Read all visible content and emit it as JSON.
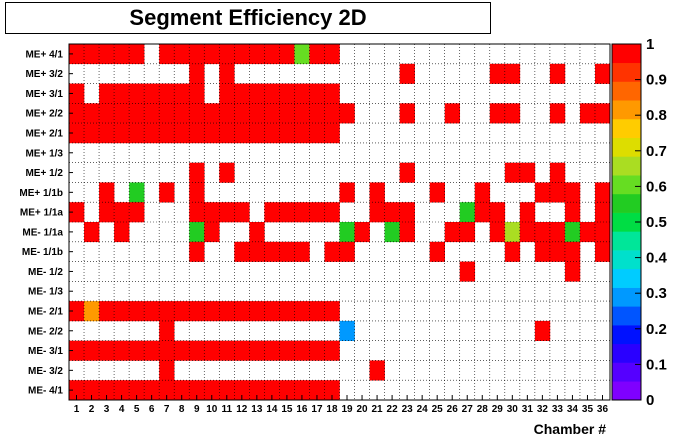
{
  "chart_data": {
    "type": "heatmap",
    "title": "Segment Efficiency 2D",
    "xlabel": "Chamber #",
    "ylabel": "",
    "x": [
      1,
      2,
      3,
      4,
      5,
      6,
      7,
      8,
      9,
      10,
      11,
      12,
      13,
      14,
      15,
      16,
      17,
      18,
      19,
      20,
      21,
      22,
      23,
      24,
      25,
      26,
      27,
      28,
      29,
      30,
      31,
      32,
      33,
      34,
      35,
      36
    ],
    "y": [
      "ME+ 4/1",
      "ME+ 3/2",
      "ME+ 3/1",
      "ME+ 2/2",
      "ME+ 2/1",
      "ME+ 1/3",
      "ME+ 1/2",
      "ME+ 1/1b",
      "ME+ 1/1a",
      "ME- 1/1a",
      "ME- 1/1b",
      "ME- 1/2",
      "ME- 1/3",
      "ME- 2/1",
      "ME- 2/2",
      "ME- 3/1",
      "ME- 3/2",
      "ME- 4/1"
    ],
    "zlim": [
      0,
      1
    ],
    "colorbar_ticks": [
      "0",
      "0.1",
      "0.2",
      "0.3",
      "0.4",
      "0.5",
      "0.6",
      "0.7",
      "0.8",
      "0.9",
      "1"
    ],
    "grid": true,
    "z": [
      [
        1,
        1,
        1,
        1,
        1,
        null,
        1,
        1,
        1,
        1,
        1,
        1,
        1,
        1,
        1,
        0.6,
        1,
        1,
        null,
        null,
        null,
        null,
        null,
        null,
        null,
        null,
        null,
        null,
        null,
        null,
        null,
        null,
        null,
        null,
        null,
        null
      ],
      [
        null,
        null,
        null,
        null,
        null,
        null,
        null,
        null,
        1,
        null,
        1,
        null,
        null,
        null,
        null,
        null,
        null,
        null,
        null,
        null,
        null,
        null,
        1,
        null,
        null,
        null,
        null,
        null,
        1,
        1,
        null,
        null,
        1,
        null,
        null,
        1
      ],
      [
        1,
        null,
        1,
        1,
        1,
        1,
        1,
        1,
        1,
        null,
        1,
        1,
        1,
        1,
        1,
        1,
        1,
        1,
        null,
        null,
        null,
        null,
        null,
        null,
        null,
        null,
        null,
        null,
        null,
        null,
        null,
        null,
        null,
        null,
        null,
        null
      ],
      [
        1,
        1,
        1,
        1,
        1,
        1,
        1,
        1,
        1,
        1,
        1,
        1,
        1,
        1,
        1,
        1,
        1,
        1,
        1,
        null,
        null,
        null,
        1,
        null,
        null,
        1,
        null,
        null,
        1,
        1,
        null,
        null,
        1,
        null,
        1,
        1
      ],
      [
        1,
        1,
        1,
        1,
        1,
        1,
        1,
        1,
        1,
        1,
        1,
        1,
        1,
        1,
        1,
        1,
        1,
        1,
        null,
        null,
        null,
        null,
        null,
        null,
        null,
        null,
        null,
        null,
        null,
        null,
        null,
        null,
        null,
        null,
        null,
        null
      ],
      [
        null,
        null,
        null,
        null,
        null,
        null,
        null,
        null,
        null,
        null,
        null,
        null,
        null,
        null,
        null,
        null,
        null,
        null,
        null,
        null,
        null,
        null,
        null,
        null,
        null,
        null,
        null,
        null,
        null,
        null,
        null,
        null,
        null,
        null,
        null,
        null
      ],
      [
        null,
        null,
        null,
        null,
        null,
        null,
        null,
        null,
        1,
        null,
        1,
        null,
        null,
        null,
        null,
        null,
        null,
        null,
        null,
        null,
        null,
        null,
        1,
        null,
        null,
        null,
        null,
        null,
        null,
        1,
        1,
        null,
        1,
        null,
        null,
        null
      ],
      [
        null,
        null,
        1,
        null,
        0.55,
        null,
        1,
        null,
        1,
        null,
        null,
        null,
        null,
        null,
        null,
        null,
        null,
        null,
        1,
        null,
        1,
        null,
        null,
        null,
        1,
        null,
        null,
        1,
        null,
        null,
        null,
        1,
        1,
        1,
        null,
        1
      ],
      [
        1,
        null,
        1,
        1,
        1,
        null,
        null,
        null,
        1,
        1,
        1,
        1,
        null,
        1,
        1,
        1,
        1,
        1,
        null,
        null,
        1,
        1,
        1,
        null,
        null,
        null,
        0.55,
        1,
        1,
        null,
        1,
        null,
        null,
        1,
        null,
        1
      ],
      [
        null,
        1,
        null,
        1,
        null,
        null,
        null,
        null,
        0.55,
        1,
        null,
        null,
        1,
        null,
        null,
        null,
        null,
        null,
        0.55,
        1,
        null,
        0.55,
        1,
        null,
        null,
        1,
        1,
        null,
        1,
        0.65,
        1,
        1,
        1,
        0.55,
        1,
        1
      ],
      [
        null,
        null,
        null,
        null,
        null,
        null,
        null,
        null,
        1,
        null,
        null,
        1,
        1,
        1,
        1,
        1,
        null,
        1,
        1,
        null,
        null,
        null,
        null,
        null,
        1,
        null,
        null,
        null,
        null,
        1,
        null,
        1,
        1,
        1,
        null,
        1
      ],
      [
        null,
        null,
        null,
        null,
        null,
        null,
        null,
        null,
        null,
        null,
        null,
        null,
        null,
        null,
        null,
        null,
        null,
        null,
        null,
        null,
        null,
        null,
        null,
        null,
        null,
        null,
        1,
        null,
        null,
        null,
        null,
        null,
        null,
        1,
        null,
        null
      ],
      [
        null,
        null,
        null,
        null,
        null,
        null,
        null,
        null,
        null,
        null,
        null,
        null,
        null,
        null,
        null,
        null,
        null,
        null,
        null,
        null,
        null,
        null,
        null,
        null,
        null,
        null,
        null,
        null,
        null,
        null,
        null,
        null,
        null,
        null,
        null,
        null
      ],
      [
        1,
        0.85,
        1,
        1,
        1,
        1,
        1,
        1,
        1,
        1,
        1,
        1,
        1,
        1,
        1,
        1,
        1,
        1,
        null,
        null,
        null,
        null,
        null,
        null,
        null,
        null,
        null,
        null,
        null,
        null,
        null,
        null,
        null,
        null,
        null,
        null
      ],
      [
        null,
        null,
        null,
        null,
        null,
        null,
        1,
        null,
        null,
        null,
        null,
        null,
        null,
        null,
        null,
        null,
        null,
        null,
        0.3,
        null,
        null,
        null,
        null,
        null,
        null,
        null,
        null,
        null,
        null,
        null,
        null,
        1,
        null,
        null,
        null,
        null
      ],
      [
        1,
        1,
        1,
        1,
        1,
        1,
        1,
        1,
        1,
        1,
        1,
        1,
        1,
        1,
        1,
        1,
        1,
        1,
        null,
        null,
        null,
        null,
        null,
        null,
        null,
        null,
        null,
        null,
        null,
        null,
        null,
        null,
        null,
        null,
        null,
        null
      ],
      [
        null,
        null,
        null,
        null,
        null,
        null,
        1,
        null,
        null,
        null,
        null,
        null,
        null,
        null,
        null,
        null,
        null,
        null,
        null,
        null,
        1,
        null,
        null,
        null,
        null,
        null,
        null,
        null,
        null,
        null,
        null,
        null,
        null,
        null,
        null,
        null
      ],
      [
        1,
        1,
        1,
        1,
        1,
        1,
        1,
        1,
        1,
        1,
        1,
        1,
        1,
        1,
        1,
        1,
        1,
        1,
        null,
        null,
        null,
        null,
        null,
        null,
        null,
        null,
        null,
        null,
        null,
        null,
        null,
        null,
        null,
        null,
        null,
        null
      ]
    ]
  },
  "palette": [
    "#7f00ff",
    "#5500ff",
    "#2a00ff",
    "#0011ff",
    "#0055ff",
    "#0099ff",
    "#00ccff",
    "#00e0cc",
    "#00e699",
    "#00dd44",
    "#22cc22",
    "#66dd22",
    "#aadd22",
    "#dddd00",
    "#ffcc00",
    "#ff9900",
    "#ff6600",
    "#ff3300",
    "#ff0000"
  ]
}
